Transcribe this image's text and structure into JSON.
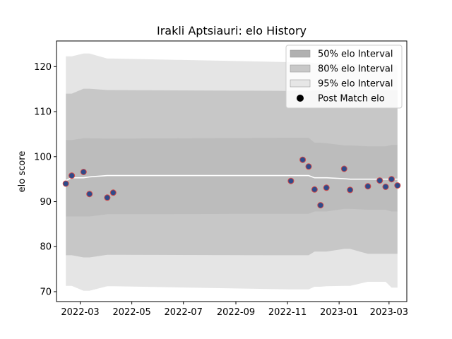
{
  "chart_data": {
    "type": "line",
    "title": "Irakli Aptsiauri: elo History",
    "xlabel": "",
    "ylabel": "elo score",
    "xlim": [
      "2022-02-01",
      "2023-03-22"
    ],
    "ylim": [
      67.8,
      125.7
    ],
    "x_ticks": [
      "2022-03",
      "2022-05",
      "2022-07",
      "2022-09",
      "2022-11",
      "2023-01",
      "2023-03"
    ],
    "y_ticks": [
      70,
      80,
      90,
      100,
      110,
      120
    ],
    "grid": false,
    "legend_position": "top-right",
    "legend": [
      {
        "label": "50% elo Interval",
        "kind": "band",
        "color": "#b0b0b0"
      },
      {
        "label": "80% elo Interval",
        "kind": "band",
        "color": "#c8c8c8"
      },
      {
        "label": "95% elo Interval",
        "kind": "band",
        "color": "#e6e6e6"
      },
      {
        "label": "Post Match elo",
        "kind": "marker",
        "color": "#000000"
      }
    ],
    "x": [
      "2022-02-12",
      "2022-02-19",
      "2022-03-05",
      "2022-03-12",
      "2022-04-02",
      "2022-04-09",
      "2022-11-05",
      "2022-11-19",
      "2022-11-26",
      "2022-12-03",
      "2022-12-10",
      "2022-12-17",
      "2023-01-07",
      "2023-01-14",
      "2023-02-04",
      "2023-02-18",
      "2023-02-25",
      "2023-03-04",
      "2023-03-11"
    ],
    "series": [
      {
        "name": "Post Match elo",
        "values": [
          94.0,
          95.8,
          96.6,
          91.7,
          90.9,
          92.0,
          94.6,
          99.3,
          97.8,
          92.7,
          89.2,
          93.1,
          97.3,
          92.6,
          93.4,
          94.7,
          93.3,
          95.0,
          93.6
        ],
        "marker_fill": "#2f4b8a",
        "marker_edge": "#d04a4a"
      },
      {
        "name": "mean",
        "values": [
          94.7,
          95.3,
          95.3,
          95.5,
          95.8,
          95.8,
          95.8,
          95.8,
          95.8,
          95.3,
          95.3,
          95.3,
          95.1,
          95.0,
          95.0,
          95.0,
          95.0,
          95.0,
          95.0
        ],
        "color": "#ffffff"
      }
    ],
    "bands": {
      "x": [
        "2022-02-12",
        "2022-02-19",
        "2022-03-05",
        "2022-03-12",
        "2022-04-02",
        "2022-04-09",
        "2022-11-05",
        "2022-11-19",
        "2022-11-26",
        "2022-12-03",
        "2022-12-10",
        "2022-12-17",
        "2023-01-07",
        "2023-01-14",
        "2023-02-04",
        "2023-02-18",
        "2023-02-25",
        "2023-03-04",
        "2023-03-11"
      ],
      "p95_low": [
        71.3,
        71.3,
        70.2,
        70.2,
        71.2,
        71.2,
        70.5,
        70.5,
        70.5,
        71.1,
        71.1,
        71.2,
        71.3,
        71.3,
        72.2,
        72.2,
        72.2,
        70.9,
        70.9
      ],
      "p95_high": [
        122.3,
        122.3,
        122.9,
        122.9,
        121.8,
        121.8,
        121.0,
        121.0,
        121.0,
        120.8,
        120.8,
        120.8,
        120.5,
        120.5,
        120.4,
        120.4,
        120.4,
        120.3,
        120.3
      ],
      "p80_low": [
        78.1,
        78.1,
        77.6,
        77.6,
        78.2,
        78.2,
        78.1,
        78.1,
        78.1,
        78.9,
        78.9,
        78.9,
        79.5,
        79.5,
        78.4,
        78.4,
        78.4,
        78.4,
        78.4
      ],
      "p80_high": [
        114.0,
        114.0,
        115.1,
        115.1,
        114.8,
        114.8,
        114.6,
        114.6,
        114.6,
        114.7,
        114.7,
        114.7,
        114.7,
        114.7,
        114.8,
        114.8,
        114.8,
        114.8,
        114.8
      ],
      "p50_low": [
        86.7,
        86.7,
        86.7,
        86.7,
        87.2,
        87.2,
        87.3,
        87.3,
        87.3,
        87.8,
        87.8,
        87.8,
        88.4,
        88.4,
        88.2,
        88.2,
        88.2,
        87.8,
        87.8
      ],
      "p50_high": [
        103.7,
        103.7,
        104.1,
        104.1,
        104.0,
        104.0,
        104.2,
        104.2,
        104.2,
        103.1,
        103.1,
        103.0,
        102.5,
        102.5,
        102.3,
        102.3,
        102.3,
        102.6,
        102.6
      ]
    }
  }
}
